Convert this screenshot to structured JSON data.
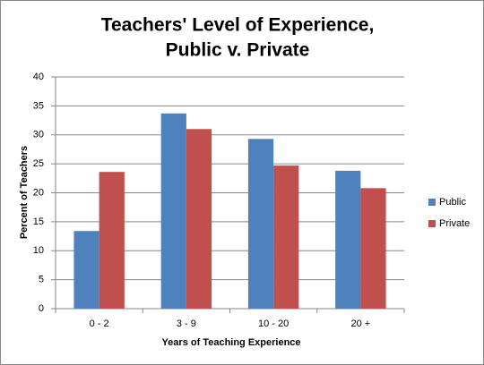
{
  "chart_data": {
    "type": "bar",
    "title": [
      "Teachers' Level of Experience,",
      "Public v. Private"
    ],
    "x_label": "Years of Teaching Experience",
    "y_label": "Percent of Teachers",
    "categories": [
      "0 - 2",
      "3 - 9",
      "10 - 20",
      "20 +"
    ],
    "series": [
      {
        "name": "Public",
        "color": "#4f81bd",
        "values": [
          13.4,
          33.7,
          29.3,
          23.8
        ]
      },
      {
        "name": "Private",
        "color": "#c0504d",
        "values": [
          23.6,
          31.0,
          24.7,
          20.8
        ]
      }
    ],
    "ylim": [
      0,
      40
    ],
    "yticks": [
      0,
      5,
      10,
      15,
      20,
      25,
      30,
      35,
      40
    ],
    "grid": true,
    "legend": "right"
  }
}
